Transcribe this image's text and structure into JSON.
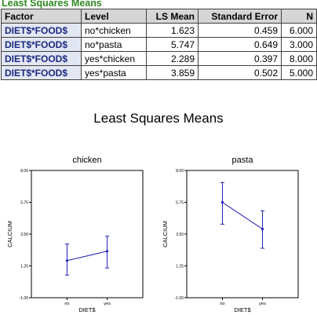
{
  "table": {
    "title": "Least Squares Means",
    "headers": [
      "Factor",
      "Level",
      "LS Mean",
      "Standard Error",
      "N"
    ],
    "rows": [
      {
        "factor": "DIET$*FOOD$",
        "level": "no*chicken",
        "ls_mean": "1.623",
        "se": "0.459",
        "n": "6.000"
      },
      {
        "factor": "DIET$*FOOD$",
        "level": "no*pasta",
        "ls_mean": "5.747",
        "se": "0.649",
        "n": "3.000"
      },
      {
        "factor": "DIET$*FOOD$",
        "level": "yes*chicken",
        "ls_mean": "2.289",
        "se": "0.397",
        "n": "8.000"
      },
      {
        "factor": "DIET$*FOOD$",
        "level": "yes*pasta",
        "ls_mean": "3.859",
        "se": "0.502",
        "n": "5.000"
      }
    ]
  },
  "chart_data": {
    "title": "Least Squares Means",
    "panels": [
      {
        "type": "line",
        "title": "chicken",
        "xlabel": "DIET$",
        "ylabel": "CALCIUM",
        "categories": [
          "no",
          "yes"
        ],
        "values": [
          1.623,
          2.289
        ],
        "error_low": [
          0.6,
          1.1
        ],
        "error_high": [
          2.8,
          3.35
        ],
        "ylim": [
          -1.0,
          8.0
        ],
        "yticks": [
          "-1.00",
          "1.25",
          "3.50",
          "5.75",
          "8.00"
        ]
      },
      {
        "type": "line",
        "title": "pasta",
        "xlabel": "DIET$",
        "ylabel": "CALCIUM",
        "categories": [
          "no",
          "yes"
        ],
        "values": [
          5.747,
          3.859
        ],
        "error_low": [
          4.2,
          2.5
        ],
        "error_high": [
          7.15,
          5.15
        ],
        "ylim": [
          -1.0,
          8.0
        ],
        "yticks": [
          "-1.00",
          "1.25",
          "3.50",
          "5.75",
          "8.00"
        ]
      }
    ],
    "line_color": "#1f1fb4"
  }
}
